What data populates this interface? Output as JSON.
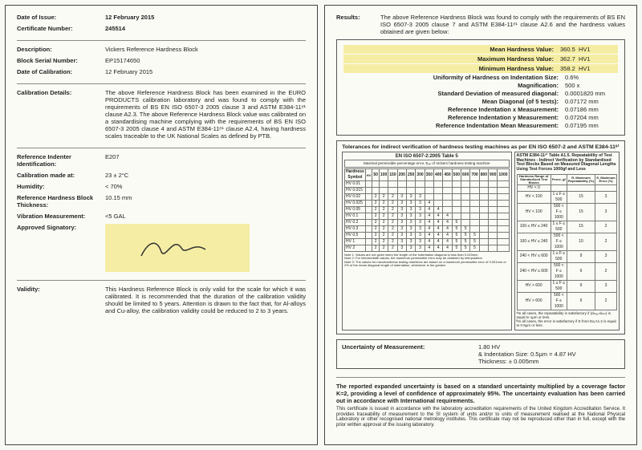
{
  "left": {
    "date_issue_l": "Date of Issue:",
    "date_issue_v": "12 February 2015",
    "cert_no_l": "Certificate Number:",
    "cert_no_v": "245514",
    "desc_l": "Description:",
    "desc_v": "Vickers Reference Hardness Block",
    "serial_l": "Block Serial Number:",
    "serial_v": "EP15174650",
    "cal_date_l": "Date of Calibration:",
    "cal_date_v": "12 February 2015",
    "cal_det_l": "Calibration Details:",
    "cal_det_v": "The above Reference Hardness Block has been examined in the EURO PRODUCTS calibration laboratory and was found to comply with the requirements of BS EN ISO 6507-3 2005 clause 3 and ASTM E384-11ᵉ¹ clause A2.3. The above Reference Hardness Block value was calibrated on a standardising machine complying with the requirements of BS EN ISO 6507-3 2005 clause 4 and ASTM E384-11ᵉ¹ clause A2.4, having hardness scales traceable to the UK National Scales as defined by PTB.",
    "indenter_l": "Reference Indenter Identification:",
    "indenter_v": "E207",
    "cal_temp_l": "Calibration made at:",
    "cal_temp_v": "23 ± 2°C",
    "humid_l": "Humidity:",
    "humid_v": "< 70%",
    "thick_l": "Reference Hardness Block Thickness:",
    "thick_v": "10.15 mm",
    "vib_l": "Vibration Measurement:",
    "vib_v": "<5 GAL",
    "sig_l": "Approved Signatory:",
    "valid_l": "Validity:",
    "valid_v": "This Hardness Reference Block is only valid for the scale for which it was calibrated. It is recommended that the duration of the calibration validity should be limited to 5 years. Attention is drawn to the fact that, for Al-alloys and Cu-alloy, the calibration validity could be reduced to 2 to 3 years."
  },
  "right": {
    "results_l": "Results:",
    "results_intro": "The above Reference Hardness Block was found to comply with the requirements of BS EN ISO 6507-3 2005 clause 7 and ASTM E384-11ᵉ¹ clause A2.6 and the hardness values obtained are given below:",
    "mean_l": "Mean Hardness Value:",
    "mean_v": "360.5",
    "mean_u": "HV1",
    "max_l": "Maximum Hardness Value:",
    "max_v": "362.7",
    "max_u": "HV1",
    "min_l": "Minimum Hardness Value:",
    "min_v": "358.2",
    "min_u": "HV1",
    "uniform_l": "Uniformity of Hardness on Indentation Size:",
    "uniform_v": "0.6%",
    "mag_l": "Magnification:",
    "mag_v": "500 x",
    "sd_l": "Standard Deviation of measured diagonal:",
    "sd_v": "0.0001820 mm",
    "meandiag_l": "Mean Diagonal (of 5 tests):",
    "meandiag_v": "0.07172 mm",
    "refx_l": "Reference Indentation x Measurement:",
    "refx_v": "0.07186 mm",
    "refy_l": "Reference Indentation y Measurement:",
    "refy_v": "0.07204 mm",
    "refm_l": "Reference Indentation Mean Measurement:",
    "refm_v": "0.07195 mm",
    "tol_title": "Tolerances for indirect verification of hardness testing machines as per EN ISO 6507-2 and ASTM E384-11ᵉ¹",
    "tol_left_hdr": "EN ISO 6507-2:2005 Table 5",
    "tol_right_hdr": "ASTM E384-11ᵉ¹ Table A1.5. Repeatability of Test Machines - Indirect Verification by Standardised Test Blocks Based on Measured Diagonal Lengths Using Test Forces 1000gf and Less",
    "tol_left_sub": "Maximal permissible percentage error, Eᵣₑₗ of Vickers hardness testing machine",
    "tol_left_rows": [
      "HV 0.01",
      "HV 0.015",
      "HV 0.02",
      "HV 0.025",
      "HV 0.05",
      "HV 0.1",
      "HV 0.2",
      "HV 0.3",
      "HV 0.5",
      "HV 1",
      "HV 2"
    ],
    "tol_left_cols": [
      "50",
      "100",
      "150",
      "200",
      "250",
      "300",
      "350",
      "400",
      "450",
      "500",
      "600",
      "700",
      "800",
      "900",
      "1000"
    ],
    "tol_left_note": "Note 1: Values are not given when the length of the indentation diagonal is less than 0.020mm\nNote 2: For intermediate values, the maximum permissible error may be obtained by interpolation\nNote 3: The values for microhardness testing machines are based on a maximum permissible error of 0.001mm or 2% of the mean diagonal length of indentation, whichever is the greater",
    "tol_right_rows": [
      [
        "HV < 0",
        "",
        "",
        ""
      ],
      [
        "HV < 100",
        "1 ≤ F ≤ 500",
        "15",
        "3"
      ],
      [
        "HV < 100",
        "500 < F ≤ 1000",
        "15",
        "3"
      ],
      [
        "100 ≤ HV ≤ 240",
        "1 ≤ F ≤ 500",
        "15",
        "2"
      ],
      [
        "100 ≤ HV ≤ 240",
        "500 < F ≤ 1000",
        "10",
        "2"
      ],
      [
        "240 < HV ≤ 600",
        "1 ≤ F ≤ 500",
        "9",
        "3"
      ],
      [
        "240 < HV ≤ 600",
        "500 < F ≤ 1000",
        "6",
        "2"
      ],
      [
        "HV > 600",
        "1 ≤ F ≤ 500",
        "9",
        "3"
      ],
      [
        "HV > 600",
        "500 < F ≤ 1000",
        "6",
        "2"
      ]
    ],
    "tol_right_cols": [
      "Hardness Range of Standardized Test Blocks",
      "Force, gf",
      "R, Maximum Repeatability (%)",
      "E, Maximum Error (%)"
    ],
    "tol_right_note": "ᴬIn all cases, the repeatability is satisfactory if (dₘₐₓ-dₘᵢₙ) is equal to 1µm or less.\nᴮIn all cases, the error is satisfactory if E from Eq A1.2 is equal to 0.5µm or less.",
    "uom_l": "Uncertainty of Measurement:",
    "uom_v1": "1.80 HV",
    "uom_v2": "& Indentation Size: 0.5µm = 4.87 HV",
    "uom_v3": "Thickness: ± 0.005mm",
    "footer_bold": "The reported expanded uncertainty is based on a standard uncertainty multiplied by a coverage factor K=2, providing a level of confidence of approximately 95%. The uncertainty evaluation has been carried out in accordance with International requirements.",
    "footer_small": "This certificate is issued in accordance with the laboratory accreditation requirements of the United Kingdom Accreditation Service. It provides traceability of measurement to the SI system of units and/or to units of measurement realised at the National Physical Laboratory or other recognised national metrology institutes. This certificate may not be reproduced other than in full, except with the prior written approval of the issuing laboratory."
  },
  "colors": {
    "highlight": "#f5eda3",
    "border": "#555555",
    "bg": "#fbfbf6"
  }
}
